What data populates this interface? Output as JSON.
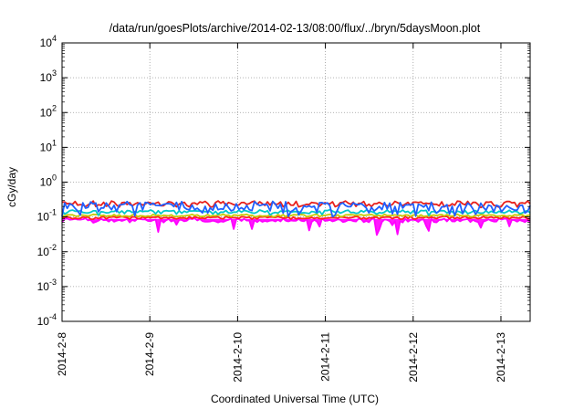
{
  "chart_data": {
    "type": "line",
    "title": "/data/run/goesPlots/archive/2014-02-13/08:00/flux/../bryn/5daysMoon.plot",
    "xlabel": "Coordinated Universal Time (UTC)",
    "ylabel": "cGy/day",
    "yscale": "log",
    "ylim": [
      0.0001,
      10000
    ],
    "xlim": [
      "2014-02-08T00:00",
      "2014-02-13T08:00"
    ],
    "grid": true,
    "legend": "none",
    "y_ticks": [
      {
        "value": 0.0001,
        "base": "10",
        "exp": "-4"
      },
      {
        "value": 0.001,
        "base": "10",
        "exp": "-3"
      },
      {
        "value": 0.01,
        "base": "10",
        "exp": "-2"
      },
      {
        "value": 0.1,
        "base": "10",
        "exp": "-1"
      },
      {
        "value": 1,
        "base": "10",
        "exp": "0"
      },
      {
        "value": 10,
        "base": "10",
        "exp": "1"
      },
      {
        "value": 100,
        "base": "10",
        "exp": "2"
      },
      {
        "value": 1000,
        "base": "10",
        "exp": "3"
      },
      {
        "value": 10000,
        "base": "10",
        "exp": "4"
      }
    ],
    "x_ticks": [
      {
        "label": "2014-2-8",
        "day": 0
      },
      {
        "label": "2014-2-9",
        "day": 1
      },
      {
        "label": "2014-2-10",
        "day": 2
      },
      {
        "label": "2014-2-11",
        "day": 3
      },
      {
        "label": "2014-2-12",
        "day": 4
      },
      {
        "label": "2014-2-13",
        "day": 5
      }
    ],
    "x_day_max": 5.333,
    "series": [
      {
        "color": "#ff00ff",
        "level": 0.08,
        "amp": 0.12,
        "dip_prob": 0.07,
        "dip_min": 0.03,
        "fill": true
      },
      {
        "color": "#ff2020",
        "level": 0.095,
        "amp": 0.08,
        "dip_prob": 0.0,
        "dip_min": 0.09
      },
      {
        "color": "#c8c800",
        "level": 0.11,
        "amp": 0.08,
        "dip_prob": 0.0,
        "dip_min": 0.1
      },
      {
        "color": "#00c8c8",
        "level": 0.14,
        "amp": 0.12,
        "dip_prob": 0.03,
        "dip_min": 0.1
      },
      {
        "color": "#e8201c",
        "level": 0.24,
        "amp": 0.18,
        "dip_prob": 0.0,
        "dip_min": 0.2
      },
      {
        "color": "#2060ff",
        "level": 0.2,
        "amp": 0.35,
        "dip_prob": 0.12,
        "dip_min": 0.1
      }
    ]
  }
}
